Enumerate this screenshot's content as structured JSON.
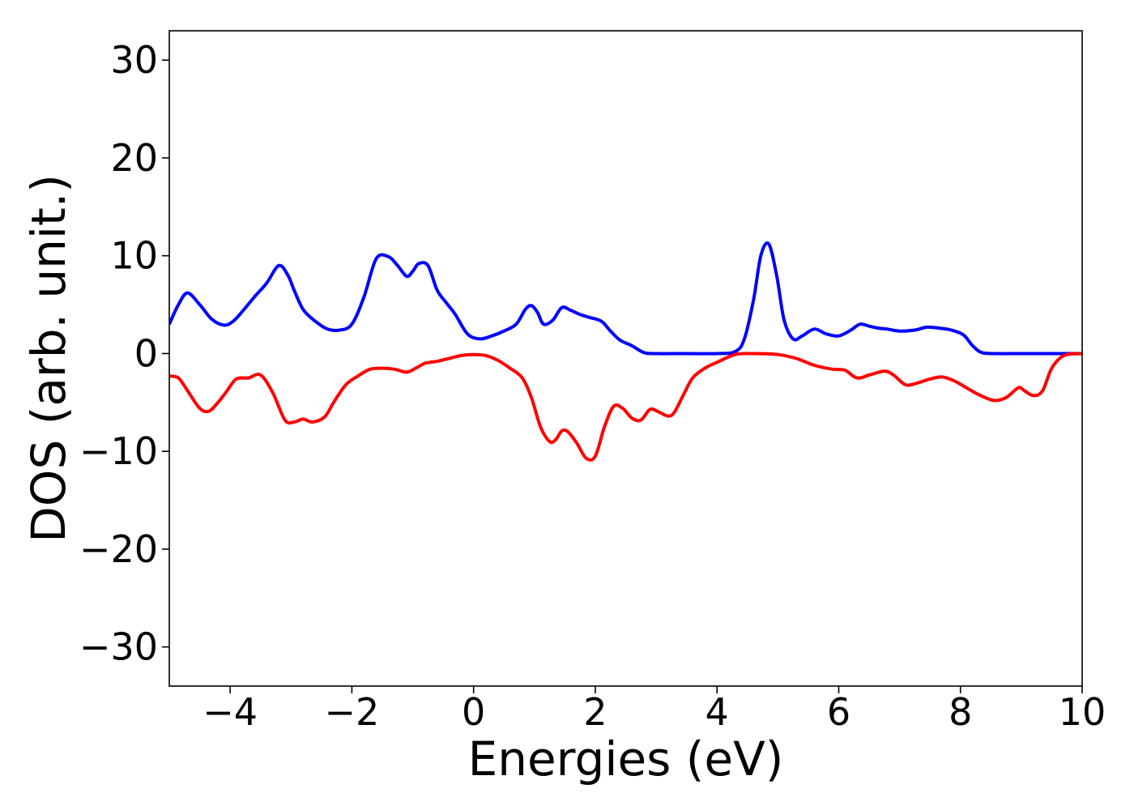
{
  "chart_data": {
    "type": "line",
    "title": "",
    "xlabel": "Energies (eV)",
    "ylabel": "DOS (arb. unit.)",
    "xlim": [
      -5,
      10
    ],
    "ylim": [
      -34,
      33
    ],
    "xticks": [
      -4,
      -2,
      0,
      2,
      4,
      6,
      8,
      10
    ],
    "xtick_labels": [
      "−4",
      "−2",
      "0",
      "2",
      "4",
      "6",
      "8",
      "10"
    ],
    "yticks": [
      30,
      20,
      10,
      0,
      -10,
      -20,
      -30
    ],
    "ytick_labels": [
      "30",
      "20",
      "10",
      "0",
      "−10",
      "−20",
      "−30"
    ],
    "grid": false,
    "legend": "none",
    "series": [
      {
        "color": "#0000ff",
        "x": [
          -5.0,
          -4.85,
          -4.7,
          -4.5,
          -4.3,
          -4.1,
          -3.95,
          -3.8,
          -3.6,
          -3.4,
          -3.2,
          -3.05,
          -2.95,
          -2.8,
          -2.6,
          -2.4,
          -2.2,
          -2.0,
          -1.8,
          -1.6,
          -1.4,
          -1.25,
          -1.1,
          -1.0,
          -0.9,
          -0.75,
          -0.6,
          -0.45,
          -0.3,
          -0.1,
          0.1,
          0.3,
          0.5,
          0.7,
          0.85,
          0.95,
          1.05,
          1.15,
          1.3,
          1.45,
          1.6,
          1.75,
          1.9,
          2.1,
          2.25,
          2.4,
          2.6,
          2.8,
          3.0,
          3.5,
          4.0,
          4.3,
          4.45,
          4.6,
          4.72,
          4.85,
          4.98,
          5.1,
          5.25,
          5.4,
          5.6,
          5.8,
          6.0,
          6.2,
          6.35,
          6.5,
          6.65,
          6.8,
          7.0,
          7.25,
          7.45,
          7.65,
          7.85,
          8.05,
          8.2,
          8.35,
          8.6,
          9.0,
          9.5,
          10.0
        ],
        "y": [
          3.0,
          5.0,
          6.2,
          5.0,
          3.5,
          2.9,
          3.3,
          4.3,
          5.8,
          7.2,
          9.0,
          8.0,
          6.5,
          4.5,
          3.3,
          2.5,
          2.4,
          3.0,
          5.8,
          9.7,
          9.9,
          9.0,
          7.9,
          8.4,
          9.2,
          9.0,
          6.5,
          5.2,
          4.0,
          2.0,
          1.5,
          1.8,
          2.3,
          3.0,
          4.5,
          4.9,
          4.2,
          3.0,
          3.4,
          4.7,
          4.4,
          4.0,
          3.7,
          3.3,
          2.3,
          1.4,
          0.8,
          0.1,
          0.0,
          0.0,
          0.0,
          0.2,
          1.5,
          5.5,
          10.0,
          11.2,
          8.0,
          3.5,
          1.5,
          1.8,
          2.5,
          2.0,
          1.8,
          2.4,
          3.0,
          2.8,
          2.6,
          2.5,
          2.3,
          2.4,
          2.7,
          2.6,
          2.4,
          1.9,
          0.8,
          0.1,
          0.0,
          0.0,
          0.0,
          0.0
        ]
      },
      {
        "color": "#ff0000",
        "x": [
          -5.0,
          -4.85,
          -4.7,
          -4.5,
          -4.35,
          -4.2,
          -4.05,
          -3.9,
          -3.7,
          -3.5,
          -3.3,
          -3.1,
          -2.95,
          -2.8,
          -2.65,
          -2.45,
          -2.3,
          -2.1,
          -1.9,
          -1.7,
          -1.5,
          -1.3,
          -1.1,
          -0.95,
          -0.8,
          -0.6,
          -0.4,
          -0.2,
          0.0,
          0.2,
          0.4,
          0.6,
          0.8,
          0.95,
          1.1,
          1.25,
          1.35,
          1.45,
          1.55,
          1.7,
          1.85,
          2.0,
          2.15,
          2.3,
          2.45,
          2.6,
          2.75,
          2.9,
          3.05,
          3.2,
          3.3,
          3.45,
          3.6,
          3.8,
          4.0,
          4.3,
          4.6,
          5.0,
          5.3,
          5.6,
          5.9,
          6.1,
          6.3,
          6.5,
          6.75,
          6.9,
          7.1,
          7.3,
          7.5,
          7.7,
          7.9,
          8.1,
          8.3,
          8.55,
          8.75,
          8.95,
          9.05,
          9.2,
          9.35,
          9.5,
          9.7,
          10.0
        ],
        "y": [
          -2.3,
          -2.5,
          -3.8,
          -5.6,
          -5.9,
          -5.0,
          -3.8,
          -2.6,
          -2.5,
          -2.2,
          -4.0,
          -6.8,
          -7.0,
          -6.7,
          -7.0,
          -6.5,
          -5.0,
          -3.2,
          -2.3,
          -1.6,
          -1.5,
          -1.6,
          -1.9,
          -1.5,
          -1.0,
          -0.8,
          -0.5,
          -0.2,
          -0.1,
          -0.2,
          -0.7,
          -1.5,
          -2.5,
          -4.5,
          -7.5,
          -9.0,
          -8.8,
          -7.9,
          -8.0,
          -9.2,
          -10.7,
          -10.5,
          -7.5,
          -5.4,
          -5.6,
          -6.6,
          -6.8,
          -5.7,
          -6.0,
          -6.4,
          -6.0,
          -4.2,
          -2.5,
          -1.5,
          -0.9,
          -0.1,
          0.0,
          -0.1,
          -0.5,
          -1.2,
          -1.6,
          -1.7,
          -2.5,
          -2.2,
          -1.8,
          -2.2,
          -3.2,
          -3.0,
          -2.6,
          -2.4,
          -2.8,
          -3.5,
          -4.2,
          -4.8,
          -4.5,
          -3.5,
          -3.8,
          -4.3,
          -3.8,
          -1.5,
          -0.2,
          0.0
        ]
      }
    ]
  }
}
